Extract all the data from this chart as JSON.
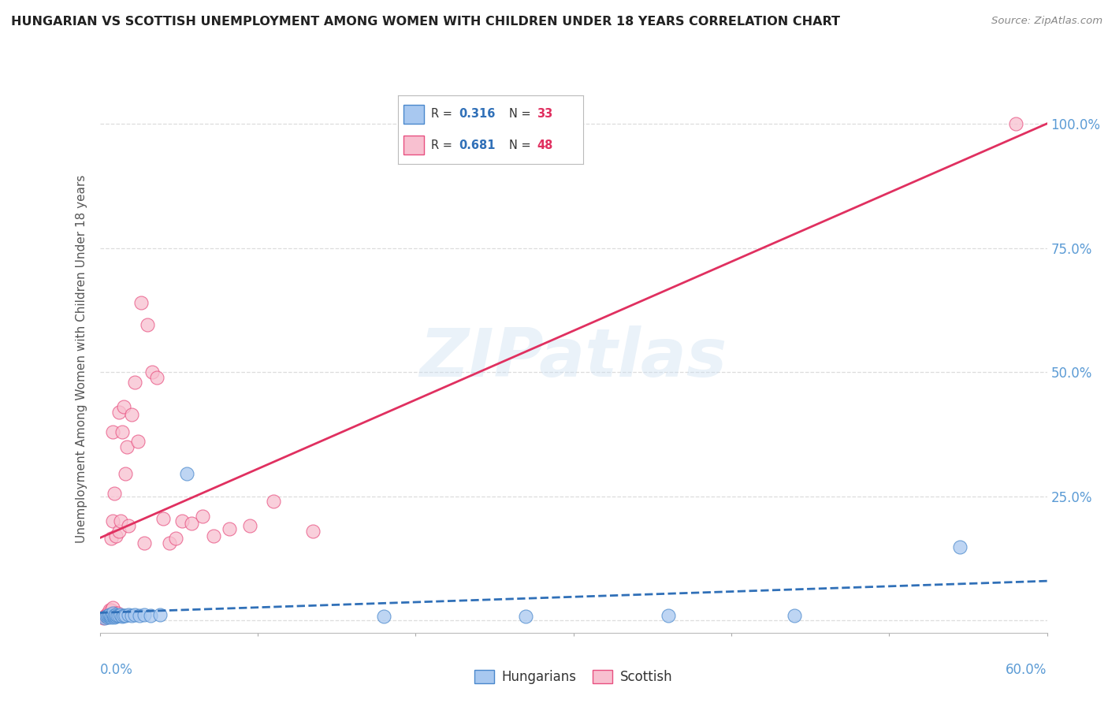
{
  "title": "HUNGARIAN VS SCOTTISH UNEMPLOYMENT AMONG WOMEN WITH CHILDREN UNDER 18 YEARS CORRELATION CHART",
  "source": "Source: ZipAtlas.com",
  "ylabel": "Unemployment Among Women with Children Under 18 years",
  "xmin": 0.0,
  "xmax": 0.6,
  "ymin": -0.025,
  "ymax": 1.08,
  "yticks": [
    0.0,
    0.25,
    0.5,
    0.75,
    1.0
  ],
  "ytick_labels": [
    "",
    "25.0%",
    "50.0%",
    "75.0%",
    "100.0%"
  ],
  "legend_r1": "0.316",
  "legend_n1": "33",
  "legend_r2": "0.681",
  "legend_n2": "48",
  "hun_color_face": "#a8c8f0",
  "hun_color_edge": "#4a88cc",
  "sco_color_face": "#f8c0d0",
  "sco_color_edge": "#e85080",
  "hun_line_color": "#3070b8",
  "sco_line_color": "#e03060",
  "watermark": "ZIPatlas",
  "background_color": "#ffffff",
  "grid_color": "#dddddd",
  "title_color": "#222222",
  "axis_label_color": "#5b9bd5",
  "hun_x": [
    0.003,
    0.004,
    0.005,
    0.005,
    0.006,
    0.006,
    0.007,
    0.007,
    0.008,
    0.008,
    0.009,
    0.009,
    0.01,
    0.01,
    0.011,
    0.012,
    0.013,
    0.014,
    0.015,
    0.016,
    0.018,
    0.02,
    0.022,
    0.025,
    0.028,
    0.032,
    0.038,
    0.055,
    0.18,
    0.27,
    0.36,
    0.44,
    0.545
  ],
  "hun_y": [
    0.005,
    0.008,
    0.006,
    0.01,
    0.008,
    0.012,
    0.007,
    0.01,
    0.009,
    0.014,
    0.007,
    0.01,
    0.008,
    0.012,
    0.01,
    0.009,
    0.011,
    0.008,
    0.01,
    0.009,
    0.012,
    0.01,
    0.012,
    0.01,
    0.012,
    0.01,
    0.012,
    0.295,
    0.008,
    0.008,
    0.01,
    0.01,
    0.148
  ],
  "sco_x": [
    0.002,
    0.003,
    0.004,
    0.004,
    0.005,
    0.005,
    0.006,
    0.006,
    0.006,
    0.007,
    0.007,
    0.007,
    0.008,
    0.008,
    0.008,
    0.009,
    0.009,
    0.01,
    0.01,
    0.011,
    0.012,
    0.012,
    0.013,
    0.014,
    0.015,
    0.016,
    0.017,
    0.018,
    0.02,
    0.022,
    0.024,
    0.026,
    0.028,
    0.03,
    0.033,
    0.036,
    0.04,
    0.044,
    0.048,
    0.052,
    0.058,
    0.065,
    0.072,
    0.082,
    0.095,
    0.11,
    0.135,
    0.58
  ],
  "sco_y": [
    0.005,
    0.008,
    0.006,
    0.012,
    0.008,
    0.015,
    0.01,
    0.015,
    0.02,
    0.01,
    0.165,
    0.02,
    0.2,
    0.025,
    0.38,
    0.01,
    0.255,
    0.015,
    0.17,
    0.015,
    0.18,
    0.42,
    0.2,
    0.38,
    0.43,
    0.295,
    0.35,
    0.19,
    0.415,
    0.48,
    0.36,
    0.64,
    0.155,
    0.595,
    0.5,
    0.49,
    0.205,
    0.155,
    0.165,
    0.2,
    0.195,
    0.21,
    0.17,
    0.185,
    0.19,
    0.24,
    0.18,
    1.0
  ]
}
